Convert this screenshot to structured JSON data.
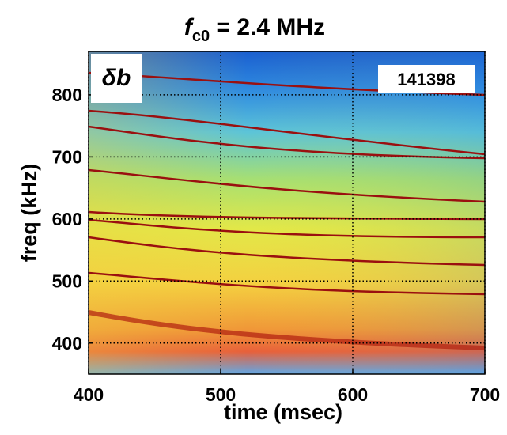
{
  "chart_data": {
    "type": "spectrogram",
    "title": {
      "symbol": "f",
      "subscript": "c0",
      "text": " = 2.4 MHz"
    },
    "x_label": "time (msec)",
    "y_label": "freq (kHz)",
    "annotations": {
      "quantity": "δb",
      "shot": "141398"
    },
    "xlim": [
      400,
      700
    ],
    "xticks": [
      400,
      500,
      600,
      700
    ],
    "ylim": [
      350,
      870
    ],
    "yticks": [
      400,
      500,
      600,
      700,
      800
    ],
    "grid": true
  }
}
